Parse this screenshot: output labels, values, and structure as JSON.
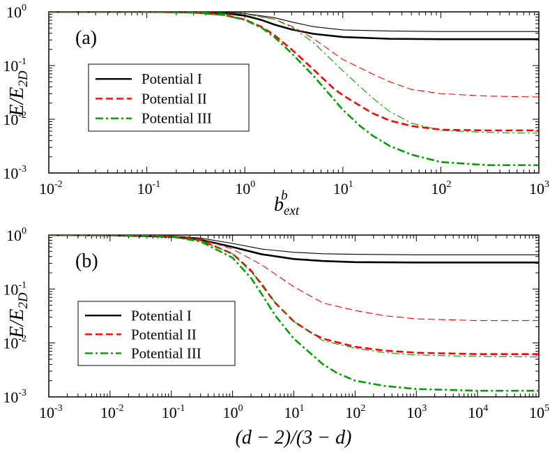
{
  "chart_data": [
    {
      "type": "line",
      "panel_label": "(a)",
      "xlabel": "b^b_ext",
      "ylabel": "E/E_2D",
      "xscale": "log",
      "yscale": "log",
      "xlim": [
        0.01,
        1000
      ],
      "ylim": [
        0.001,
        1
      ],
      "x_ticks": [
        {
          "value": 0.01,
          "base": "10",
          "exp": "-2"
        },
        {
          "value": 0.1,
          "base": "10",
          "exp": "-1"
        },
        {
          "value": 1,
          "base": "10",
          "exp": "0"
        },
        {
          "value": 10,
          "base": "10",
          "exp": "1"
        },
        {
          "value": 100,
          "base": "10",
          "exp": "2"
        },
        {
          "value": 1000,
          "base": "10",
          "exp": "3"
        }
      ],
      "y_ticks": [
        {
          "value": 0.001,
          "base": "10",
          "exp": "-3"
        },
        {
          "value": 0.01,
          "base": "10",
          "exp": "-2"
        },
        {
          "value": 0.1,
          "base": "10",
          "exp": "-1"
        },
        {
          "value": 1,
          "base": "10",
          "exp": "0"
        }
      ],
      "legend": {
        "placement": "center-left",
        "entries": [
          "Potential I",
          "Potential II",
          "Potential III"
        ]
      },
      "series": [
        {
          "name": "Potential I",
          "style": "solid",
          "weight": "thick",
          "color": "#000000",
          "points": [
            [
              0.01,
              1
            ],
            [
              0.1,
              1
            ],
            [
              0.3,
              0.99
            ],
            [
              0.6,
              0.95
            ],
            [
              1,
              0.85
            ],
            [
              1.5,
              0.7
            ],
            [
              2,
              0.58
            ],
            [
              3,
              0.47
            ],
            [
              5,
              0.39
            ],
            [
              10,
              0.34
            ],
            [
              30,
              0.315
            ],
            [
              100,
              0.31
            ],
            [
              1000,
              0.31
            ]
          ]
        },
        {
          "name": "Potential I",
          "style": "solid",
          "weight": "thin",
          "color": "#000000",
          "points": [
            [
              0.01,
              1
            ],
            [
              0.3,
              1
            ],
            [
              0.6,
              0.98
            ],
            [
              1,
              0.93
            ],
            [
              2,
              0.78
            ],
            [
              3,
              0.65
            ],
            [
              5,
              0.53
            ],
            [
              10,
              0.46
            ],
            [
              30,
              0.44
            ],
            [
              100,
              0.43
            ],
            [
              1000,
              0.43
            ]
          ]
        },
        {
          "name": "Potential II",
          "style": "dashed",
          "weight": "thick",
          "color": "#ff0000",
          "points": [
            [
              0.01,
              1
            ],
            [
              0.1,
              1
            ],
            [
              0.3,
              0.97
            ],
            [
              0.6,
              0.88
            ],
            [
              1,
              0.72
            ],
            [
              1.5,
              0.52
            ],
            [
              2,
              0.37
            ],
            [
              3,
              0.2
            ],
            [
              5,
              0.085
            ],
            [
              8,
              0.038
            ],
            [
              10,
              0.028
            ],
            [
              20,
              0.013
            ],
            [
              30,
              0.0095
            ],
            [
              50,
              0.0075
            ],
            [
              100,
              0.0064
            ],
            [
              300,
              0.0062
            ],
            [
              1000,
              0.0062
            ]
          ]
        },
        {
          "name": "Potential II",
          "style": "dashed",
          "weight": "thin",
          "color": "#ff0000",
          "points": [
            [
              0.01,
              1
            ],
            [
              0.3,
              1
            ],
            [
              1,
              0.92
            ],
            [
              2,
              0.73
            ],
            [
              3,
              0.54
            ],
            [
              5,
              0.32
            ],
            [
              10,
              0.13
            ],
            [
              20,
              0.07
            ],
            [
              30,
              0.05
            ],
            [
              50,
              0.036
            ],
            [
              100,
              0.03
            ],
            [
              300,
              0.027
            ],
            [
              1000,
              0.026
            ]
          ]
        },
        {
          "name": "Potential III",
          "style": "dashdot",
          "weight": "thick",
          "color": "#00a000",
          "points": [
            [
              0.01,
              1
            ],
            [
              0.1,
              1
            ],
            [
              0.3,
              0.97
            ],
            [
              0.6,
              0.88
            ],
            [
              1,
              0.71
            ],
            [
              1.5,
              0.5
            ],
            [
              2,
              0.34
            ],
            [
              3,
              0.17
            ],
            [
              5,
              0.065
            ],
            [
              10,
              0.015
            ],
            [
              15,
              0.0075
            ],
            [
              20,
              0.005
            ],
            [
              30,
              0.0032
            ],
            [
              50,
              0.0022
            ],
            [
              100,
              0.0016
            ],
            [
              300,
              0.0014
            ],
            [
              1000,
              0.0014
            ]
          ]
        },
        {
          "name": "Potential III",
          "style": "dashdot",
          "weight": "thin",
          "color": "#00a000",
          "points": [
            [
              0.01,
              1
            ],
            [
              0.3,
              1
            ],
            [
              1,
              0.92
            ],
            [
              2,
              0.73
            ],
            [
              3,
              0.52
            ],
            [
              5,
              0.27
            ],
            [
              10,
              0.08
            ],
            [
              20,
              0.025
            ],
            [
              30,
              0.014
            ],
            [
              50,
              0.0085
            ],
            [
              100,
              0.0062
            ],
            [
              300,
              0.0057
            ],
            [
              1000,
              0.0055
            ]
          ]
        }
      ]
    },
    {
      "type": "line",
      "panel_label": "(b)",
      "xlabel": "(d − 2)/(3 − d)",
      "ylabel": "E/E_2D",
      "xscale": "log",
      "yscale": "log",
      "xlim": [
        0.001,
        100000
      ],
      "ylim": [
        0.001,
        1
      ],
      "x_ticks": [
        {
          "value": 0.001,
          "base": "10",
          "exp": "-3"
        },
        {
          "value": 0.01,
          "base": "10",
          "exp": "-2"
        },
        {
          "value": 0.1,
          "base": "10",
          "exp": "-1"
        },
        {
          "value": 1,
          "base": "10",
          "exp": "0"
        },
        {
          "value": 10,
          "base": "10",
          "exp": "1"
        },
        {
          "value": 100,
          "base": "10",
          "exp": "2"
        },
        {
          "value": 1000,
          "base": "10",
          "exp": "3"
        },
        {
          "value": 10000,
          "base": "10",
          "exp": "4"
        },
        {
          "value": 100000,
          "base": "10",
          "exp": "5"
        }
      ],
      "y_ticks": [
        {
          "value": 0.001,
          "base": "10",
          "exp": "-3"
        },
        {
          "value": 0.01,
          "base": "10",
          "exp": "-2"
        },
        {
          "value": 0.1,
          "base": "10",
          "exp": "-1"
        },
        {
          "value": 1,
          "base": "10",
          "exp": "0"
        }
      ],
      "legend": {
        "placement": "center-left",
        "entries": [
          "Potential I",
          "Potential II",
          "Potential III"
        ]
      },
      "series": [
        {
          "name": "Potential I",
          "style": "solid",
          "weight": "thick",
          "color": "#000000",
          "points": [
            [
              0.001,
              1
            ],
            [
              0.01,
              0.99
            ],
            [
              0.1,
              0.93
            ],
            [
              0.3,
              0.82
            ],
            [
              1,
              0.6
            ],
            [
              3,
              0.44
            ],
            [
              10,
              0.36
            ],
            [
              30,
              0.33
            ],
            [
              100,
              0.315
            ],
            [
              1000,
              0.31
            ],
            [
              100000,
              0.31
            ]
          ]
        },
        {
          "name": "Potential I",
          "style": "solid",
          "weight": "thin",
          "color": "#000000",
          "points": [
            [
              0.001,
              1
            ],
            [
              0.01,
              1
            ],
            [
              0.1,
              0.96
            ],
            [
              0.3,
              0.88
            ],
            [
              1,
              0.7
            ],
            [
              3,
              0.55
            ],
            [
              10,
              0.48
            ],
            [
              30,
              0.45
            ],
            [
              100,
              0.44
            ],
            [
              1000,
              0.43
            ],
            [
              100000,
              0.43
            ]
          ]
        },
        {
          "name": "Potential II",
          "style": "dashed",
          "weight": "thick",
          "color": "#ff0000",
          "points": [
            [
              0.001,
              1
            ],
            [
              0.01,
              1
            ],
            [
              0.1,
              0.95
            ],
            [
              0.3,
              0.8
            ],
            [
              1,
              0.45
            ],
            [
              2,
              0.22
            ],
            [
              3,
              0.12
            ],
            [
              5,
              0.055
            ],
            [
              10,
              0.025
            ],
            [
              20,
              0.015
            ],
            [
              30,
              0.012
            ],
            [
              100,
              0.0085
            ],
            [
              300,
              0.0072
            ],
            [
              1000,
              0.0066
            ],
            [
              10000,
              0.0062
            ],
            [
              100000,
              0.0062
            ]
          ]
        },
        {
          "name": "Potential II",
          "style": "dashed",
          "weight": "thin",
          "color": "#ff0000",
          "points": [
            [
              0.001,
              1
            ],
            [
              0.01,
              1
            ],
            [
              0.1,
              0.96
            ],
            [
              0.3,
              0.85
            ],
            [
              1,
              0.55
            ],
            [
              3,
              0.28
            ],
            [
              10,
              0.11
            ],
            [
              30,
              0.055
            ],
            [
              100,
              0.04
            ],
            [
              300,
              0.032
            ],
            [
              1000,
              0.028
            ],
            [
              10000,
              0.026
            ],
            [
              100000,
              0.026
            ]
          ]
        },
        {
          "name": "Potential III",
          "style": "dashdot",
          "weight": "thick",
          "color": "#00a000",
          "points": [
            [
              0.001,
              1
            ],
            [
              0.01,
              1
            ],
            [
              0.1,
              0.94
            ],
            [
              0.3,
              0.76
            ],
            [
              1,
              0.38
            ],
            [
              2,
              0.16
            ],
            [
              3,
              0.08
            ],
            [
              5,
              0.032
            ],
            [
              10,
              0.012
            ],
            [
              20,
              0.006
            ],
            [
              30,
              0.004
            ],
            [
              50,
              0.0028
            ],
            [
              100,
              0.002
            ],
            [
              300,
              0.0016
            ],
            [
              1000,
              0.0014
            ],
            [
              10000,
              0.0013
            ],
            [
              100000,
              0.0013
            ]
          ]
        },
        {
          "name": "Potential III",
          "style": "dashdot",
          "weight": "thin",
          "color": "#00a000",
          "points": [
            [
              0.001,
              1
            ],
            [
              0.01,
              1
            ],
            [
              0.1,
              0.95
            ],
            [
              0.3,
              0.8
            ],
            [
              1,
              0.45
            ],
            [
              3,
              0.13
            ],
            [
              5,
              0.055
            ],
            [
              10,
              0.025
            ],
            [
              30,
              0.011
            ],
            [
              100,
              0.008
            ],
            [
              300,
              0.0066
            ],
            [
              1000,
              0.006
            ],
            [
              10000,
              0.0056
            ],
            [
              100000,
              0.0055
            ]
          ]
        }
      ]
    }
  ]
}
